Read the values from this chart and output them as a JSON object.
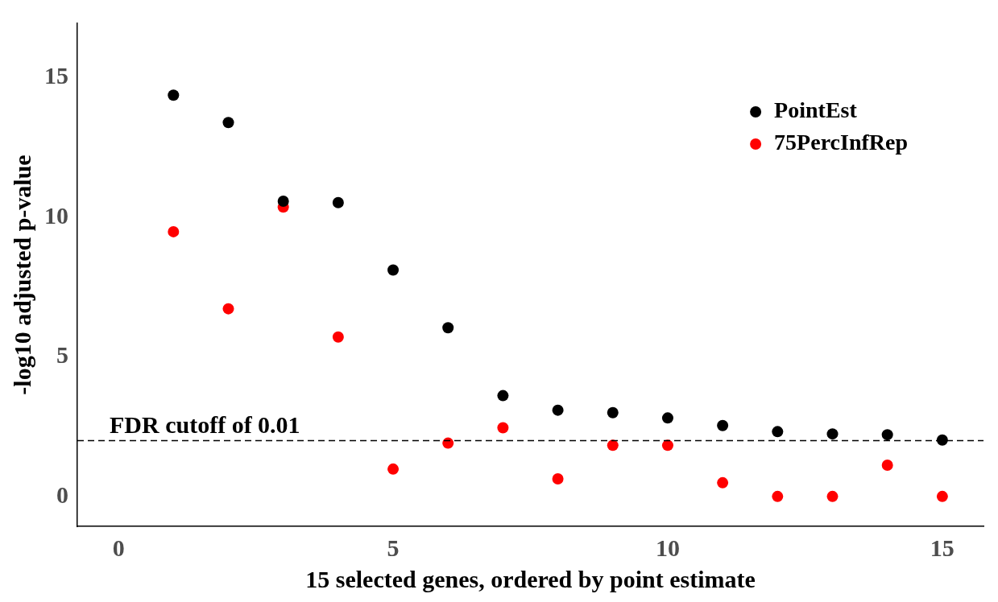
{
  "chart_data": {
    "type": "scatter",
    "xlabel": "15 selected genes, ordered by point estimate",
    "ylabel": "-log10 adjusted p-value",
    "x": [
      1,
      2,
      3,
      4,
      5,
      6,
      7,
      8,
      9,
      10,
      11,
      12,
      13,
      14,
      15
    ],
    "series": [
      {
        "name": "PointEst",
        "color": "#000000",
        "values": [
          14.37,
          13.39,
          10.57,
          10.52,
          8.11,
          6.04,
          3.61,
          3.09,
          3.0,
          2.81,
          2.54,
          2.32,
          2.24,
          2.21,
          2.02
        ]
      },
      {
        "name": "75PercInfRep",
        "color": "#ff0000",
        "values": [
          9.48,
          6.72,
          10.36,
          5.71,
          0.98,
          1.91,
          2.46,
          0.63,
          1.83,
          1.83,
          0.49,
          0,
          0,
          1.12,
          0
        ]
      }
    ],
    "xlim": [
      -0.75,
      15.75
    ],
    "xticks": [
      0,
      5,
      10,
      15
    ],
    "ylim": [
      -1.07,
      16.94
    ],
    "yticks": [
      0,
      5,
      10,
      15
    ],
    "ref_lines": [
      {
        "axis": "y",
        "value": 2,
        "label": "FDR cutoff of 0.01",
        "color": "#000000",
        "line_style": "dashed"
      }
    ],
    "grid": false,
    "legend": "top right",
    "marker": "circle"
  }
}
